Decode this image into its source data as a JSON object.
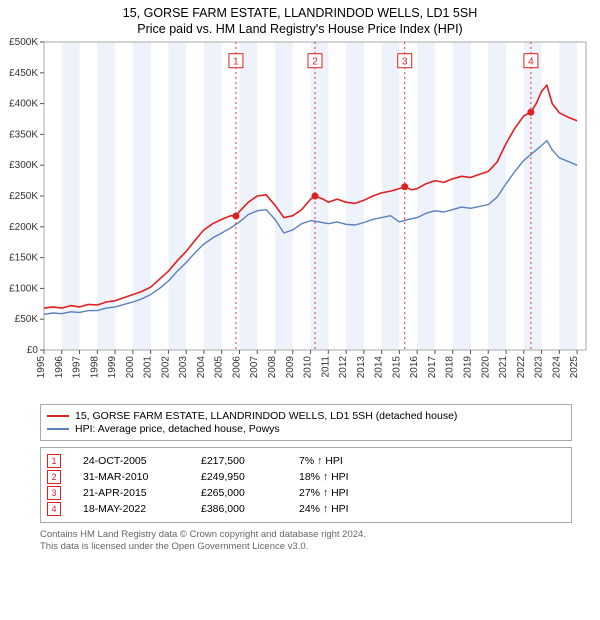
{
  "title_line1": "15, GORSE FARM ESTATE, LLANDRINDOD WELLS, LD1 5SH",
  "title_line2": "Price paid vs. HM Land Registry's House Price Index (HPI)",
  "chart": {
    "type": "line",
    "background_color": "#ffffff",
    "plot_border_color": "#aaaaaa",
    "grid_color": "#e6e6e6",
    "band_color": "#eef2fb",
    "xlim": [
      1995,
      2025.5
    ],
    "ylim": [
      0,
      500000
    ],
    "ytick_step": 50000,
    "yticks": [
      "£0",
      "£50K",
      "£100K",
      "£150K",
      "£200K",
      "£250K",
      "£300K",
      "£350K",
      "£400K",
      "£450K",
      "£500K"
    ],
    "xticks": [
      1995,
      1996,
      1997,
      1998,
      1999,
      2000,
      2001,
      2002,
      2003,
      2004,
      2005,
      2006,
      2007,
      2008,
      2009,
      2010,
      2011,
      2012,
      2013,
      2014,
      2015,
      2016,
      2017,
      2018,
      2019,
      2020,
      2021,
      2022,
      2023,
      2024,
      2025
    ],
    "band_years": [
      [
        1996,
        1997
      ],
      [
        1998,
        1999
      ],
      [
        2000,
        2001
      ],
      [
        2002,
        2003
      ],
      [
        2004,
        2005
      ],
      [
        2006,
        2007
      ],
      [
        2008,
        2009
      ],
      [
        2010,
        2011
      ],
      [
        2012,
        2013
      ],
      [
        2014,
        2015
      ],
      [
        2016,
        2017
      ],
      [
        2018,
        2019
      ],
      [
        2020,
        2021
      ],
      [
        2022,
        2023
      ],
      [
        2024,
        2025
      ]
    ],
    "series": [
      {
        "name": "property",
        "color": "#e02020",
        "width": 1.6,
        "points": [
          [
            1995,
            68000
          ],
          [
            1995.5,
            70000
          ],
          [
            1996,
            68000
          ],
          [
            1996.5,
            72000
          ],
          [
            1997,
            70000
          ],
          [
            1997.5,
            74000
          ],
          [
            1998,
            73000
          ],
          [
            1998.5,
            78000
          ],
          [
            1999,
            80000
          ],
          [
            1999.5,
            85000
          ],
          [
            2000,
            90000
          ],
          [
            2000.5,
            95000
          ],
          [
            2001,
            102000
          ],
          [
            2001.5,
            115000
          ],
          [
            2002,
            128000
          ],
          [
            2002.5,
            145000
          ],
          [
            2003,
            160000
          ],
          [
            2003.5,
            178000
          ],
          [
            2004,
            195000
          ],
          [
            2004.5,
            205000
          ],
          [
            2005,
            212000
          ],
          [
            2005.5,
            218000
          ],
          [
            2005.8,
            217500
          ],
          [
            2006,
            225000
          ],
          [
            2006.5,
            240000
          ],
          [
            2007,
            250000
          ],
          [
            2007.5,
            252000
          ],
          [
            2008,
            235000
          ],
          [
            2008.5,
            215000
          ],
          [
            2009,
            218000
          ],
          [
            2009.5,
            228000
          ],
          [
            2010,
            245000
          ],
          [
            2010.25,
            249950
          ],
          [
            2010.7,
            245000
          ],
          [
            2011,
            240000
          ],
          [
            2011.5,
            245000
          ],
          [
            2012,
            240000
          ],
          [
            2012.5,
            238000
          ],
          [
            2013,
            243000
          ],
          [
            2013.5,
            250000
          ],
          [
            2014,
            255000
          ],
          [
            2014.5,
            258000
          ],
          [
            2015,
            262000
          ],
          [
            2015.3,
            265000
          ],
          [
            2015.7,
            260000
          ],
          [
            2016,
            262000
          ],
          [
            2016.5,
            270000
          ],
          [
            2017,
            275000
          ],
          [
            2017.5,
            272000
          ],
          [
            2018,
            278000
          ],
          [
            2018.5,
            282000
          ],
          [
            2019,
            280000
          ],
          [
            2019.5,
            285000
          ],
          [
            2020,
            290000
          ],
          [
            2020.5,
            305000
          ],
          [
            2021,
            335000
          ],
          [
            2021.5,
            360000
          ],
          [
            2022,
            380000
          ],
          [
            2022.4,
            386000
          ],
          [
            2022.7,
            400000
          ],
          [
            2023,
            420000
          ],
          [
            2023.3,
            430000
          ],
          [
            2023.6,
            400000
          ],
          [
            2024,
            385000
          ],
          [
            2024.5,
            378000
          ],
          [
            2025,
            372000
          ]
        ]
      },
      {
        "name": "hpi",
        "color": "#5a7fc0",
        "width": 1.4,
        "points": [
          [
            1995,
            58000
          ],
          [
            1995.5,
            60000
          ],
          [
            1996,
            59000
          ],
          [
            1996.5,
            62000
          ],
          [
            1997,
            61000
          ],
          [
            1997.5,
            64000
          ],
          [
            1998,
            64000
          ],
          [
            1998.5,
            68000
          ],
          [
            1999,
            70000
          ],
          [
            1999.5,
            74000
          ],
          [
            2000,
            78000
          ],
          [
            2000.5,
            83000
          ],
          [
            2001,
            90000
          ],
          [
            2001.5,
            100000
          ],
          [
            2002,
            112000
          ],
          [
            2002.5,
            128000
          ],
          [
            2003,
            142000
          ],
          [
            2003.5,
            158000
          ],
          [
            2004,
            172000
          ],
          [
            2004.5,
            182000
          ],
          [
            2005,
            190000
          ],
          [
            2005.5,
            198000
          ],
          [
            2006,
            208000
          ],
          [
            2006.5,
            220000
          ],
          [
            2007,
            226000
          ],
          [
            2007.5,
            228000
          ],
          [
            2008,
            212000
          ],
          [
            2008.5,
            190000
          ],
          [
            2009,
            195000
          ],
          [
            2009.5,
            205000
          ],
          [
            2010,
            210000
          ],
          [
            2010.5,
            208000
          ],
          [
            2011,
            205000
          ],
          [
            2011.5,
            208000
          ],
          [
            2012,
            204000
          ],
          [
            2012.5,
            203000
          ],
          [
            2013,
            207000
          ],
          [
            2013.5,
            212000
          ],
          [
            2014,
            215000
          ],
          [
            2014.5,
            218000
          ],
          [
            2015,
            208000
          ],
          [
            2015.5,
            212000
          ],
          [
            2016,
            215000
          ],
          [
            2016.5,
            222000
          ],
          [
            2017,
            226000
          ],
          [
            2017.5,
            224000
          ],
          [
            2018,
            228000
          ],
          [
            2018.5,
            232000
          ],
          [
            2019,
            230000
          ],
          [
            2019.5,
            233000
          ],
          [
            2020,
            236000
          ],
          [
            2020.5,
            248000
          ],
          [
            2021,
            270000
          ],
          [
            2021.5,
            290000
          ],
          [
            2022,
            308000
          ],
          [
            2022.5,
            320000
          ],
          [
            2023,
            332000
          ],
          [
            2023.3,
            340000
          ],
          [
            2023.6,
            325000
          ],
          [
            2024,
            312000
          ],
          [
            2024.5,
            306000
          ],
          [
            2025,
            300000
          ]
        ]
      }
    ],
    "markers": [
      {
        "n": "1",
        "x": 2005.8,
        "y": 217500,
        "label_y": 468000
      },
      {
        "n": "2",
        "x": 2010.25,
        "y": 249950,
        "label_y": 468000
      },
      {
        "n": "3",
        "x": 2015.3,
        "y": 265000,
        "label_y": 468000
      },
      {
        "n": "4",
        "x": 2022.4,
        "y": 386000,
        "label_y": 468000
      }
    ],
    "marker_color": "#e02020",
    "marker_box_fill": "#ffffff",
    "tick_fontsize": 10
  },
  "legend": {
    "items": [
      {
        "color": "#e02020",
        "label": "15, GORSE FARM ESTATE, LLANDRINDOD WELLS, LD1 5SH (detached house)"
      },
      {
        "color": "#5a7fc0",
        "label": "HPI: Average price, detached house, Powys"
      }
    ]
  },
  "events": [
    {
      "n": "1",
      "date": "24-OCT-2005",
      "price": "£217,500",
      "delta": "7% ↑ HPI"
    },
    {
      "n": "2",
      "date": "31-MAR-2010",
      "price": "£249,950",
      "delta": "18% ↑ HPI"
    },
    {
      "n": "3",
      "date": "21-APR-2015",
      "price": "£265,000",
      "delta": "27% ↑ HPI"
    },
    {
      "n": "4",
      "date": "18-MAY-2022",
      "price": "£386,000",
      "delta": "24% ↑ HPI"
    }
  ],
  "footer_line1": "Contains HM Land Registry data © Crown copyright and database right 2024.",
  "footer_line2": "This data is licensed under the Open Government Licence v3.0."
}
